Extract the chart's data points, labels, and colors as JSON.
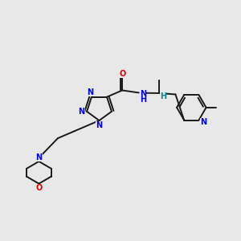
{
  "background_color": "#e8e8e8",
  "bond_color": "#1a1a1a",
  "N_color": "#0000ee",
  "O_color": "#dd0000",
  "H_color": "#008888",
  "figsize": [
    3.0,
    3.0
  ],
  "dpi": 100,
  "xlim": [
    0,
    10
  ],
  "ylim": [
    0,
    10
  ]
}
